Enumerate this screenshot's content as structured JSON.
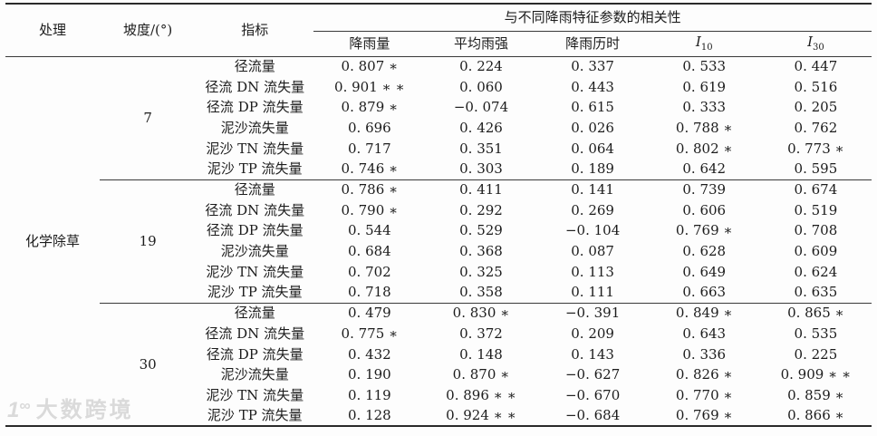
{
  "table": {
    "header": {
      "treatment": "处理",
      "slope": "坡度/(°)",
      "indicator": "指标",
      "corr_group": "与不同降雨特征参数的相关性",
      "columns": [
        {
          "text": "降雨量"
        },
        {
          "text": "平均雨强"
        },
        {
          "text": "降雨历时"
        },
        {
          "base": "I",
          "sub": "10"
        },
        {
          "base": "I",
          "sub": "30"
        }
      ]
    },
    "treatment": "化学除草",
    "groups": [
      {
        "slope": "7",
        "rows": [
          {
            "indicator": "径流量",
            "values": [
              "0. 807 ∗",
              "0. 224",
              "0. 337",
              "0. 533",
              "0. 447"
            ]
          },
          {
            "indicator": "径流 DN 流失量",
            "values": [
              "0. 901 ∗ ∗",
              "0. 060",
              "0. 443",
              "0. 619",
              "0. 516"
            ]
          },
          {
            "indicator": "径流 DP 流失量",
            "values": [
              "0. 879 ∗",
              "−0. 074",
              "0. 615",
              "0. 333",
              "0. 205"
            ]
          },
          {
            "indicator": "泥沙流失量",
            "values": [
              "0. 696",
              "0. 426",
              "0. 026",
              "0. 788 ∗",
              "0. 762"
            ]
          },
          {
            "indicator": "泥沙 TN 流失量",
            "values": [
              "0. 717",
              "0. 351",
              "0. 064",
              "0. 802 ∗",
              "0. 773 ∗"
            ]
          },
          {
            "indicator": "泥沙 TP 流失量",
            "values": [
              "0. 746 ∗",
              "0. 303",
              "0. 189",
              "0. 642",
              "0. 595"
            ]
          }
        ]
      },
      {
        "slope": "19",
        "rows": [
          {
            "indicator": "径流量",
            "values": [
              "0. 786 ∗",
              "0. 411",
              "0. 141",
              "0. 739",
              "0. 674"
            ]
          },
          {
            "indicator": "径流 DN 流失量",
            "values": [
              "0. 790 ∗",
              "0. 292",
              "0. 269",
              "0. 606",
              "0. 519"
            ]
          },
          {
            "indicator": "径流 DP 流失量",
            "values": [
              "0. 544",
              "0. 529",
              "−0. 104",
              "0. 769 ∗",
              "0. 708"
            ]
          },
          {
            "indicator": "泥沙流失量",
            "values": [
              "0. 684",
              "0. 368",
              "0. 087",
              "0. 628",
              "0. 609"
            ]
          },
          {
            "indicator": "泥沙 TN 流失量",
            "values": [
              "0. 702",
              "0. 325",
              "0. 113",
              "0. 649",
              "0. 624"
            ]
          },
          {
            "indicator": "泥沙 TP 流失量",
            "values": [
              "0. 718",
              "0. 358",
              "0. 111",
              "0. 663",
              "0. 635"
            ]
          }
        ]
      },
      {
        "slope": "30",
        "rows": [
          {
            "indicator": "径流量",
            "values": [
              "0. 479",
              "0. 830 ∗",
              "−0. 391",
              "0. 849 ∗",
              "0. 865 ∗"
            ]
          },
          {
            "indicator": "径流 DN 流失量",
            "values": [
              "0. 775 ∗",
              "0. 372",
              "0. 209",
              "0. 643",
              "0. 535"
            ]
          },
          {
            "indicator": "径流 DP 流失量",
            "values": [
              "0. 432",
              "0. 148",
              "0. 143",
              "0. 336",
              "0. 225"
            ]
          },
          {
            "indicator": "泥沙流失量",
            "values": [
              "0. 190",
              "0. 870 ∗",
              "−0. 627",
              "0. 826 ∗",
              "0. 909 ∗ ∗"
            ]
          },
          {
            "indicator": "泥沙 TN 流失量",
            "values": [
              "0. 119",
              "0. 896 ∗ ∗",
              "−0. 670",
              "0. 770 ∗",
              "0. 859 ∗"
            ]
          },
          {
            "indicator": "泥沙 TP 流失量",
            "values": [
              "0. 128",
              "0. 924 ∗ ∗",
              "−0. 684",
              "0. 769 ∗",
              "0. 866 ∗"
            ]
          }
        ]
      }
    ]
  },
  "watermark": {
    "logo_one": "1",
    "logo_oo": "∞",
    "text": "大数跨境"
  },
  "colors": {
    "rule_thick": "#2a2a2a",
    "rule_thin": "#3a3a3a",
    "text": "#1c1c1c",
    "watermark": "#dadada",
    "background": "#fdfdfd"
  }
}
